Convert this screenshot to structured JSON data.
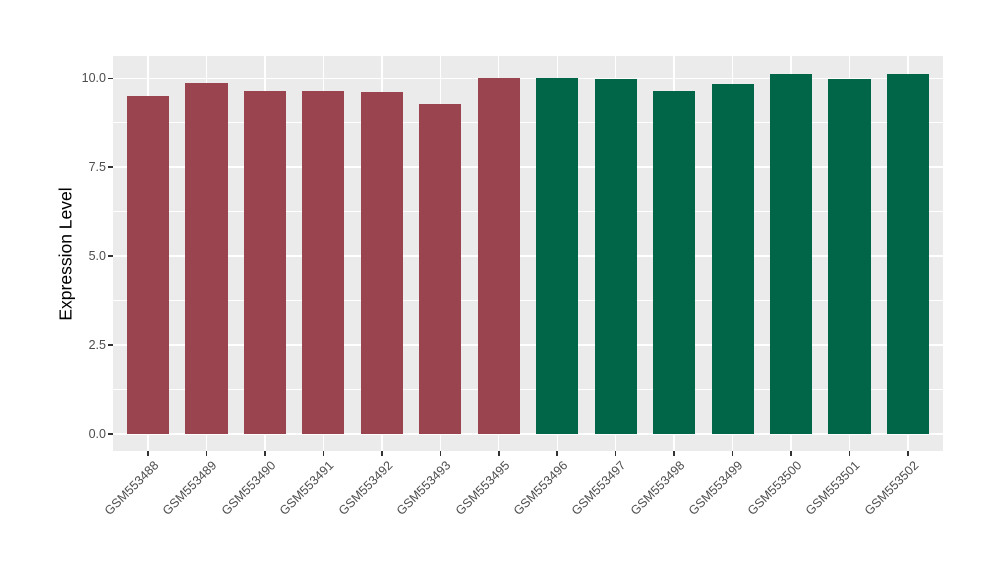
{
  "chart_data": {
    "type": "bar",
    "title": "",
    "xlabel": "",
    "ylabel": "Expression Level",
    "categories": [
      "GSM553488",
      "GSM553489",
      "GSM553490",
      "GSM553491",
      "GSM553492",
      "GSM553493",
      "GSM553495",
      "GSM553496",
      "GSM553497",
      "GSM553498",
      "GSM553499",
      "GSM553500",
      "GSM553501",
      "GSM553502"
    ],
    "values": [
      9.5,
      9.87,
      9.64,
      9.64,
      9.61,
      9.29,
      10.01,
      10.01,
      9.97,
      9.64,
      9.83,
      10.13,
      9.97,
      10.11
    ],
    "groups": [
      "g1",
      "g1",
      "g1",
      "g1",
      "g1",
      "g1",
      "g1",
      "g2",
      "g2",
      "g2",
      "g2",
      "g2",
      "g2",
      "g2"
    ],
    "group_colors": {
      "g1": "#9A4450",
      "g2": "#006647"
    },
    "y_ticks": [
      0.0,
      2.5,
      5.0,
      7.5,
      10.0
    ],
    "y_tick_labels": [
      "0.0",
      "2.5",
      "5.0",
      "7.5",
      "10.0"
    ],
    "y_minor_ticks": [
      1.25,
      3.75,
      6.25,
      8.75
    ],
    "ylim": [
      -0.48,
      10.62
    ],
    "x_tick_rotation_deg": 45,
    "legend_position": "none",
    "grid": "horizontal major+minor, vertical major at category centers",
    "panel_background": "#EBEBEB",
    "gridline_color": "#FFFFFF",
    "axis_text_color": "#4D4D4D",
    "axis_title_color": "#000000",
    "tick_mark_color": "#333333"
  }
}
